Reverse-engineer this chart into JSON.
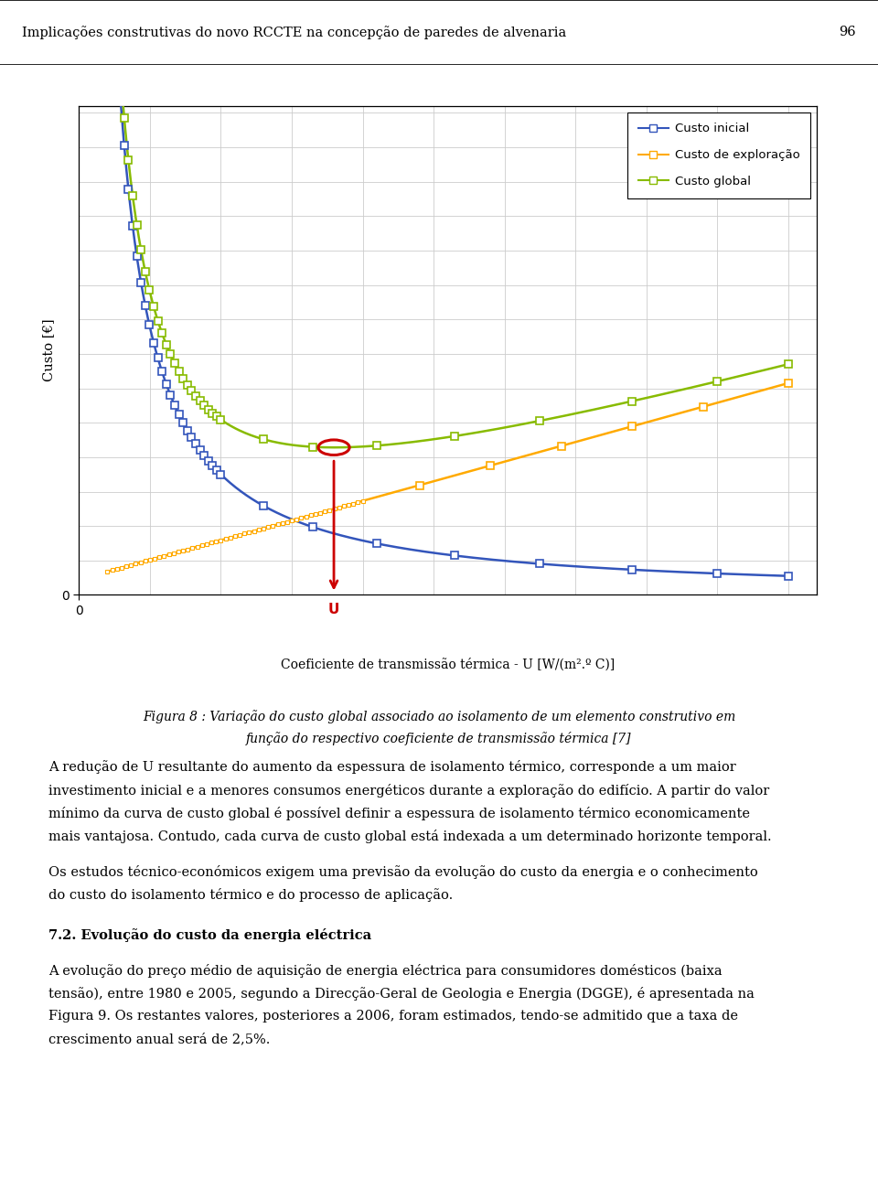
{
  "title_header": "Implicações construtivas do novo RCCTE na concepção de paredes de alvenaria",
  "page_number": "96",
  "xlabel": "Coeficiente de transmissão térmica - U [W/(m².º C)]",
  "ylabel": "Custo [€]",
  "legend_entries": [
    "Custo inicial",
    "Custo de exploração",
    "Custo global"
  ],
  "blue_color": "#3355bb",
  "orange_color": "#ffaa00",
  "green_color": "#88bb00",
  "red_color": "#cc0000",
  "grid_color": "#cccccc",
  "figure_caption_line1": "Figura 8 : Variação do custo global associado ao isolamento de um elemento construtivo em",
  "figure_caption_line2": "função do respectivo coeficiente de transmissão térmica [7]",
  "para1": "A redução de U resultante do aumento da espessura de isolamento térmico, corresponde a um maior investimento inicial e a menores consumos energéticos durante a exploração do edifício. A partir do valor mínimo da curva de custo global é possível definir a espessura de isolamento térmico economicamente mais vantajosa. Contudo, cada curva de custo global está indexada a um determinado horizonte temporal.",
  "para2": "Os estudos técnico-económicos exigem uma previsão da evolução do custo da energia e o conhecimento do custo do isolamento térmico e do processo de aplicação.",
  "section_title": "7.2. Evolução do custo da energia eléctrica",
  "para3": "A evolução do preço médio de aquisição de energia eléctrica para consumidores domésticos (baixa tensão), entre 1980 e 2005, segundo a Direcção-Geral de Geologia e Energia (DGGE), é apresentada na Figura 9. Os restantes valores, posteriores a 2006, foram estimados, tendo-se admitido que a taxa de crescimento anual será de 2,5%."
}
